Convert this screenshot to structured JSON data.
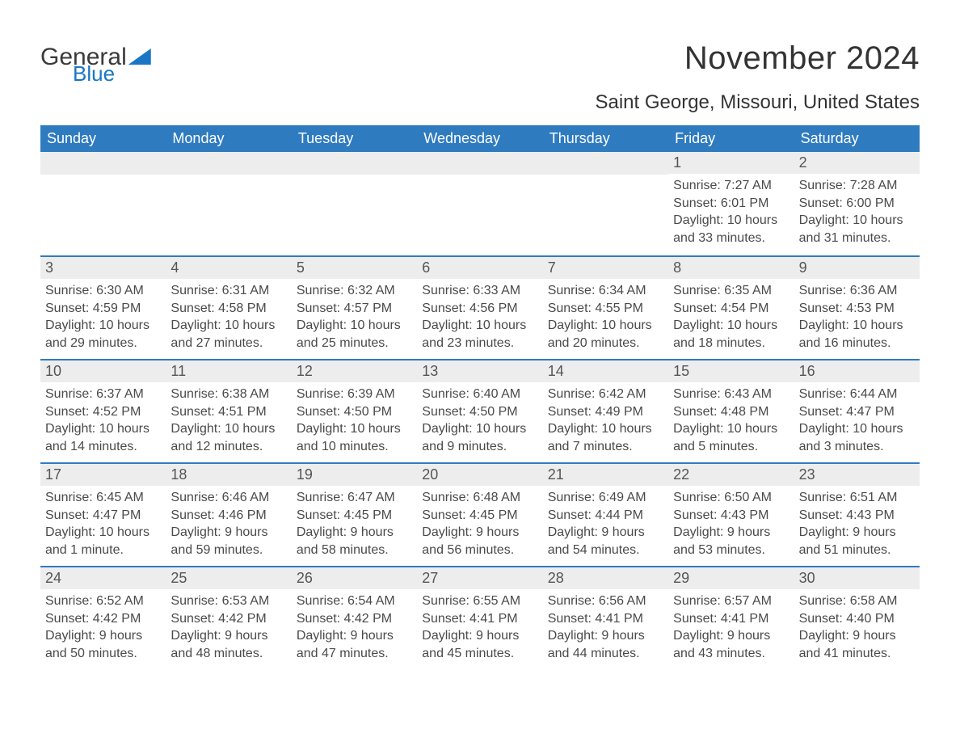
{
  "logo": {
    "part1": "General",
    "part2": "Blue"
  },
  "title": "November 2024",
  "location": "Saint George, Missouri, United States",
  "colors": {
    "header_bg": "#2f7bc0",
    "header_text": "#ffffff",
    "daynum_bg": "#ededed",
    "row_border": "#2f7bc0",
    "text": "#333333",
    "logo_blue": "#1976c5"
  },
  "weekdays": [
    "Sunday",
    "Monday",
    "Tuesday",
    "Wednesday",
    "Thursday",
    "Friday",
    "Saturday"
  ],
  "weeks": [
    [
      {
        "blank": true
      },
      {
        "blank": true
      },
      {
        "blank": true
      },
      {
        "blank": true
      },
      {
        "blank": true
      },
      {
        "n": "1",
        "sunrise": "Sunrise: 7:27 AM",
        "sunset": "Sunset: 6:01 PM",
        "daylight": "Daylight: 10 hours and 33 minutes."
      },
      {
        "n": "2",
        "sunrise": "Sunrise: 7:28 AM",
        "sunset": "Sunset: 6:00 PM",
        "daylight": "Daylight: 10 hours and 31 minutes."
      }
    ],
    [
      {
        "n": "3",
        "sunrise": "Sunrise: 6:30 AM",
        "sunset": "Sunset: 4:59 PM",
        "daylight": "Daylight: 10 hours and 29 minutes."
      },
      {
        "n": "4",
        "sunrise": "Sunrise: 6:31 AM",
        "sunset": "Sunset: 4:58 PM",
        "daylight": "Daylight: 10 hours and 27 minutes."
      },
      {
        "n": "5",
        "sunrise": "Sunrise: 6:32 AM",
        "sunset": "Sunset: 4:57 PM",
        "daylight": "Daylight: 10 hours and 25 minutes."
      },
      {
        "n": "6",
        "sunrise": "Sunrise: 6:33 AM",
        "sunset": "Sunset: 4:56 PM",
        "daylight": "Daylight: 10 hours and 23 minutes."
      },
      {
        "n": "7",
        "sunrise": "Sunrise: 6:34 AM",
        "sunset": "Sunset: 4:55 PM",
        "daylight": "Daylight: 10 hours and 20 minutes."
      },
      {
        "n": "8",
        "sunrise": "Sunrise: 6:35 AM",
        "sunset": "Sunset: 4:54 PM",
        "daylight": "Daylight: 10 hours and 18 minutes."
      },
      {
        "n": "9",
        "sunrise": "Sunrise: 6:36 AM",
        "sunset": "Sunset: 4:53 PM",
        "daylight": "Daylight: 10 hours and 16 minutes."
      }
    ],
    [
      {
        "n": "10",
        "sunrise": "Sunrise: 6:37 AM",
        "sunset": "Sunset: 4:52 PM",
        "daylight": "Daylight: 10 hours and 14 minutes."
      },
      {
        "n": "11",
        "sunrise": "Sunrise: 6:38 AM",
        "sunset": "Sunset: 4:51 PM",
        "daylight": "Daylight: 10 hours and 12 minutes."
      },
      {
        "n": "12",
        "sunrise": "Sunrise: 6:39 AM",
        "sunset": "Sunset: 4:50 PM",
        "daylight": "Daylight: 10 hours and 10 minutes."
      },
      {
        "n": "13",
        "sunrise": "Sunrise: 6:40 AM",
        "sunset": "Sunset: 4:50 PM",
        "daylight": "Daylight: 10 hours and 9 minutes."
      },
      {
        "n": "14",
        "sunrise": "Sunrise: 6:42 AM",
        "sunset": "Sunset: 4:49 PM",
        "daylight": "Daylight: 10 hours and 7 minutes."
      },
      {
        "n": "15",
        "sunrise": "Sunrise: 6:43 AM",
        "sunset": "Sunset: 4:48 PM",
        "daylight": "Daylight: 10 hours and 5 minutes."
      },
      {
        "n": "16",
        "sunrise": "Sunrise: 6:44 AM",
        "sunset": "Sunset: 4:47 PM",
        "daylight": "Daylight: 10 hours and 3 minutes."
      }
    ],
    [
      {
        "n": "17",
        "sunrise": "Sunrise: 6:45 AM",
        "sunset": "Sunset: 4:47 PM",
        "daylight": "Daylight: 10 hours and 1 minute."
      },
      {
        "n": "18",
        "sunrise": "Sunrise: 6:46 AM",
        "sunset": "Sunset: 4:46 PM",
        "daylight": "Daylight: 9 hours and 59 minutes."
      },
      {
        "n": "19",
        "sunrise": "Sunrise: 6:47 AM",
        "sunset": "Sunset: 4:45 PM",
        "daylight": "Daylight: 9 hours and 58 minutes."
      },
      {
        "n": "20",
        "sunrise": "Sunrise: 6:48 AM",
        "sunset": "Sunset: 4:45 PM",
        "daylight": "Daylight: 9 hours and 56 minutes."
      },
      {
        "n": "21",
        "sunrise": "Sunrise: 6:49 AM",
        "sunset": "Sunset: 4:44 PM",
        "daylight": "Daylight: 9 hours and 54 minutes."
      },
      {
        "n": "22",
        "sunrise": "Sunrise: 6:50 AM",
        "sunset": "Sunset: 4:43 PM",
        "daylight": "Daylight: 9 hours and 53 minutes."
      },
      {
        "n": "23",
        "sunrise": "Sunrise: 6:51 AM",
        "sunset": "Sunset: 4:43 PM",
        "daylight": "Daylight: 9 hours and 51 minutes."
      }
    ],
    [
      {
        "n": "24",
        "sunrise": "Sunrise: 6:52 AM",
        "sunset": "Sunset: 4:42 PM",
        "daylight": "Daylight: 9 hours and 50 minutes."
      },
      {
        "n": "25",
        "sunrise": "Sunrise: 6:53 AM",
        "sunset": "Sunset: 4:42 PM",
        "daylight": "Daylight: 9 hours and 48 minutes."
      },
      {
        "n": "26",
        "sunrise": "Sunrise: 6:54 AM",
        "sunset": "Sunset: 4:42 PM",
        "daylight": "Daylight: 9 hours and 47 minutes."
      },
      {
        "n": "27",
        "sunrise": "Sunrise: 6:55 AM",
        "sunset": "Sunset: 4:41 PM",
        "daylight": "Daylight: 9 hours and 45 minutes."
      },
      {
        "n": "28",
        "sunrise": "Sunrise: 6:56 AM",
        "sunset": "Sunset: 4:41 PM",
        "daylight": "Daylight: 9 hours and 44 minutes."
      },
      {
        "n": "29",
        "sunrise": "Sunrise: 6:57 AM",
        "sunset": "Sunset: 4:41 PM",
        "daylight": "Daylight: 9 hours and 43 minutes."
      },
      {
        "n": "30",
        "sunrise": "Sunrise: 6:58 AM",
        "sunset": "Sunset: 4:40 PM",
        "daylight": "Daylight: 9 hours and 41 minutes."
      }
    ]
  ]
}
